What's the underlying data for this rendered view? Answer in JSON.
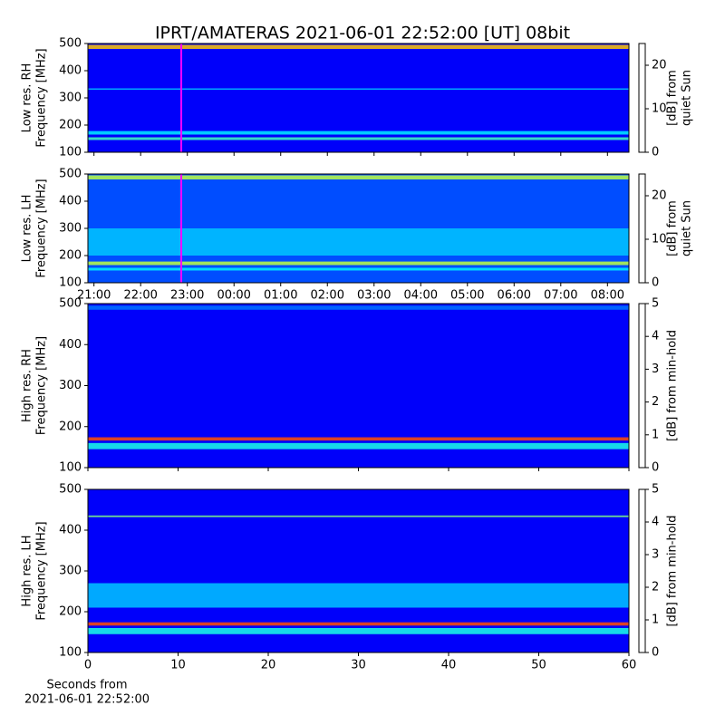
{
  "title": "IPRT/AMATERAS 2021-06-01 22:52:00 [UT]   08bit",
  "chart_data": [
    {
      "type": "spectrogram",
      "ylabel": [
        "Low res. RH",
        "Frequency [MHz]"
      ],
      "ylim": [
        100,
        500
      ],
      "yticks": [
        100,
        200,
        300,
        400,
        500
      ],
      "xlim": [
        20.87,
        32.46
      ],
      "marker_x": 22.87,
      "marker_color": "#ff00ff",
      "background": 3,
      "bands": [
        {
          "low": 480,
          "high": 495,
          "value": 17
        },
        {
          "low": 165,
          "high": 178,
          "value": 9
        },
        {
          "low": 145,
          "high": 155,
          "value": 11
        },
        {
          "low": 330,
          "high": 335,
          "value": 8
        }
      ],
      "clim": [
        0,
        25
      ],
      "cticks": [
        0,
        10,
        20
      ],
      "clabel": [
        "[dB] from",
        "quiet Sun"
      ]
    },
    {
      "type": "spectrogram",
      "ylabel": [
        "Low res. LH",
        "Frequency [MHz]"
      ],
      "ylim": [
        100,
        500
      ],
      "yticks": [
        100,
        200,
        300,
        400,
        500
      ],
      "xlim": [
        20.87,
        32.46
      ],
      "xticks": [
        {
          "value": 21,
          "label": "21:00"
        },
        {
          "value": 22,
          "label": "22:00"
        },
        {
          "value": 23,
          "label": "23:00"
        },
        {
          "value": 24,
          "label": "00:00"
        },
        {
          "value": 25,
          "label": "01:00"
        },
        {
          "value": 26,
          "label": "02:00"
        },
        {
          "value": 27,
          "label": "03:00"
        },
        {
          "value": 28,
          "label": "04:00"
        },
        {
          "value": 29,
          "label": "05:00"
        },
        {
          "value": 30,
          "label": "06:00"
        },
        {
          "value": 31,
          "label": "07:00"
        },
        {
          "value": 32,
          "label": "08:00"
        }
      ],
      "marker_x": 22.87,
      "marker_color": "#ff00ff",
      "background": 5,
      "bands": [
        {
          "low": 480,
          "high": 495,
          "value": 14
        },
        {
          "low": 200,
          "high": 300,
          "value": 8
        },
        {
          "low": 165,
          "high": 178,
          "value": 14
        },
        {
          "low": 145,
          "high": 155,
          "value": 9
        }
      ],
      "clim": [
        0,
        25
      ],
      "cticks": [
        0,
        10,
        20
      ],
      "clabel": [
        "[dB] from",
        "quiet Sun"
      ]
    },
    {
      "type": "spectrogram",
      "ylabel": [
        "High res. RH",
        "Frequency [MHz]"
      ],
      "ylim": [
        100,
        500
      ],
      "yticks": [
        100,
        200,
        300,
        400,
        500
      ],
      "xlim": [
        0,
        60
      ],
      "background": 0.6,
      "bands": [
        {
          "low": 166,
          "high": 174,
          "value": 4
        },
        {
          "low": 145,
          "high": 160,
          "value": 2
        },
        {
          "low": 485,
          "high": 495,
          "value": 1.2
        }
      ],
      "clim": [
        0,
        5
      ],
      "cticks": [
        0,
        1,
        2,
        3,
        4,
        5
      ],
      "clabel": [
        "[dB] from min-hold"
      ]
    },
    {
      "type": "spectrogram",
      "ylabel": [
        "High res. LH",
        "Frequency [MHz]"
      ],
      "ylim": [
        100,
        500
      ],
      "yticks": [
        100,
        200,
        300,
        400,
        500
      ],
      "xlim": [
        0,
        60
      ],
      "xticks": [
        0,
        10,
        20,
        30,
        40,
        50,
        60
      ],
      "xlabel": [
        "Seconds from",
        "2021-06-01 22:52:00"
      ],
      "background": 0.6,
      "bands": [
        {
          "low": 210,
          "high": 270,
          "value": 1.6
        },
        {
          "low": 166,
          "high": 174,
          "value": 4
        },
        {
          "low": 145,
          "high": 160,
          "value": 2
        },
        {
          "low": 432,
          "high": 436,
          "value": 2.5
        }
      ],
      "clim": [
        0,
        5
      ],
      "cticks": [
        0,
        1,
        2,
        3,
        4,
        5
      ],
      "clabel": [
        "[dB] from min-hold"
      ]
    }
  ]
}
